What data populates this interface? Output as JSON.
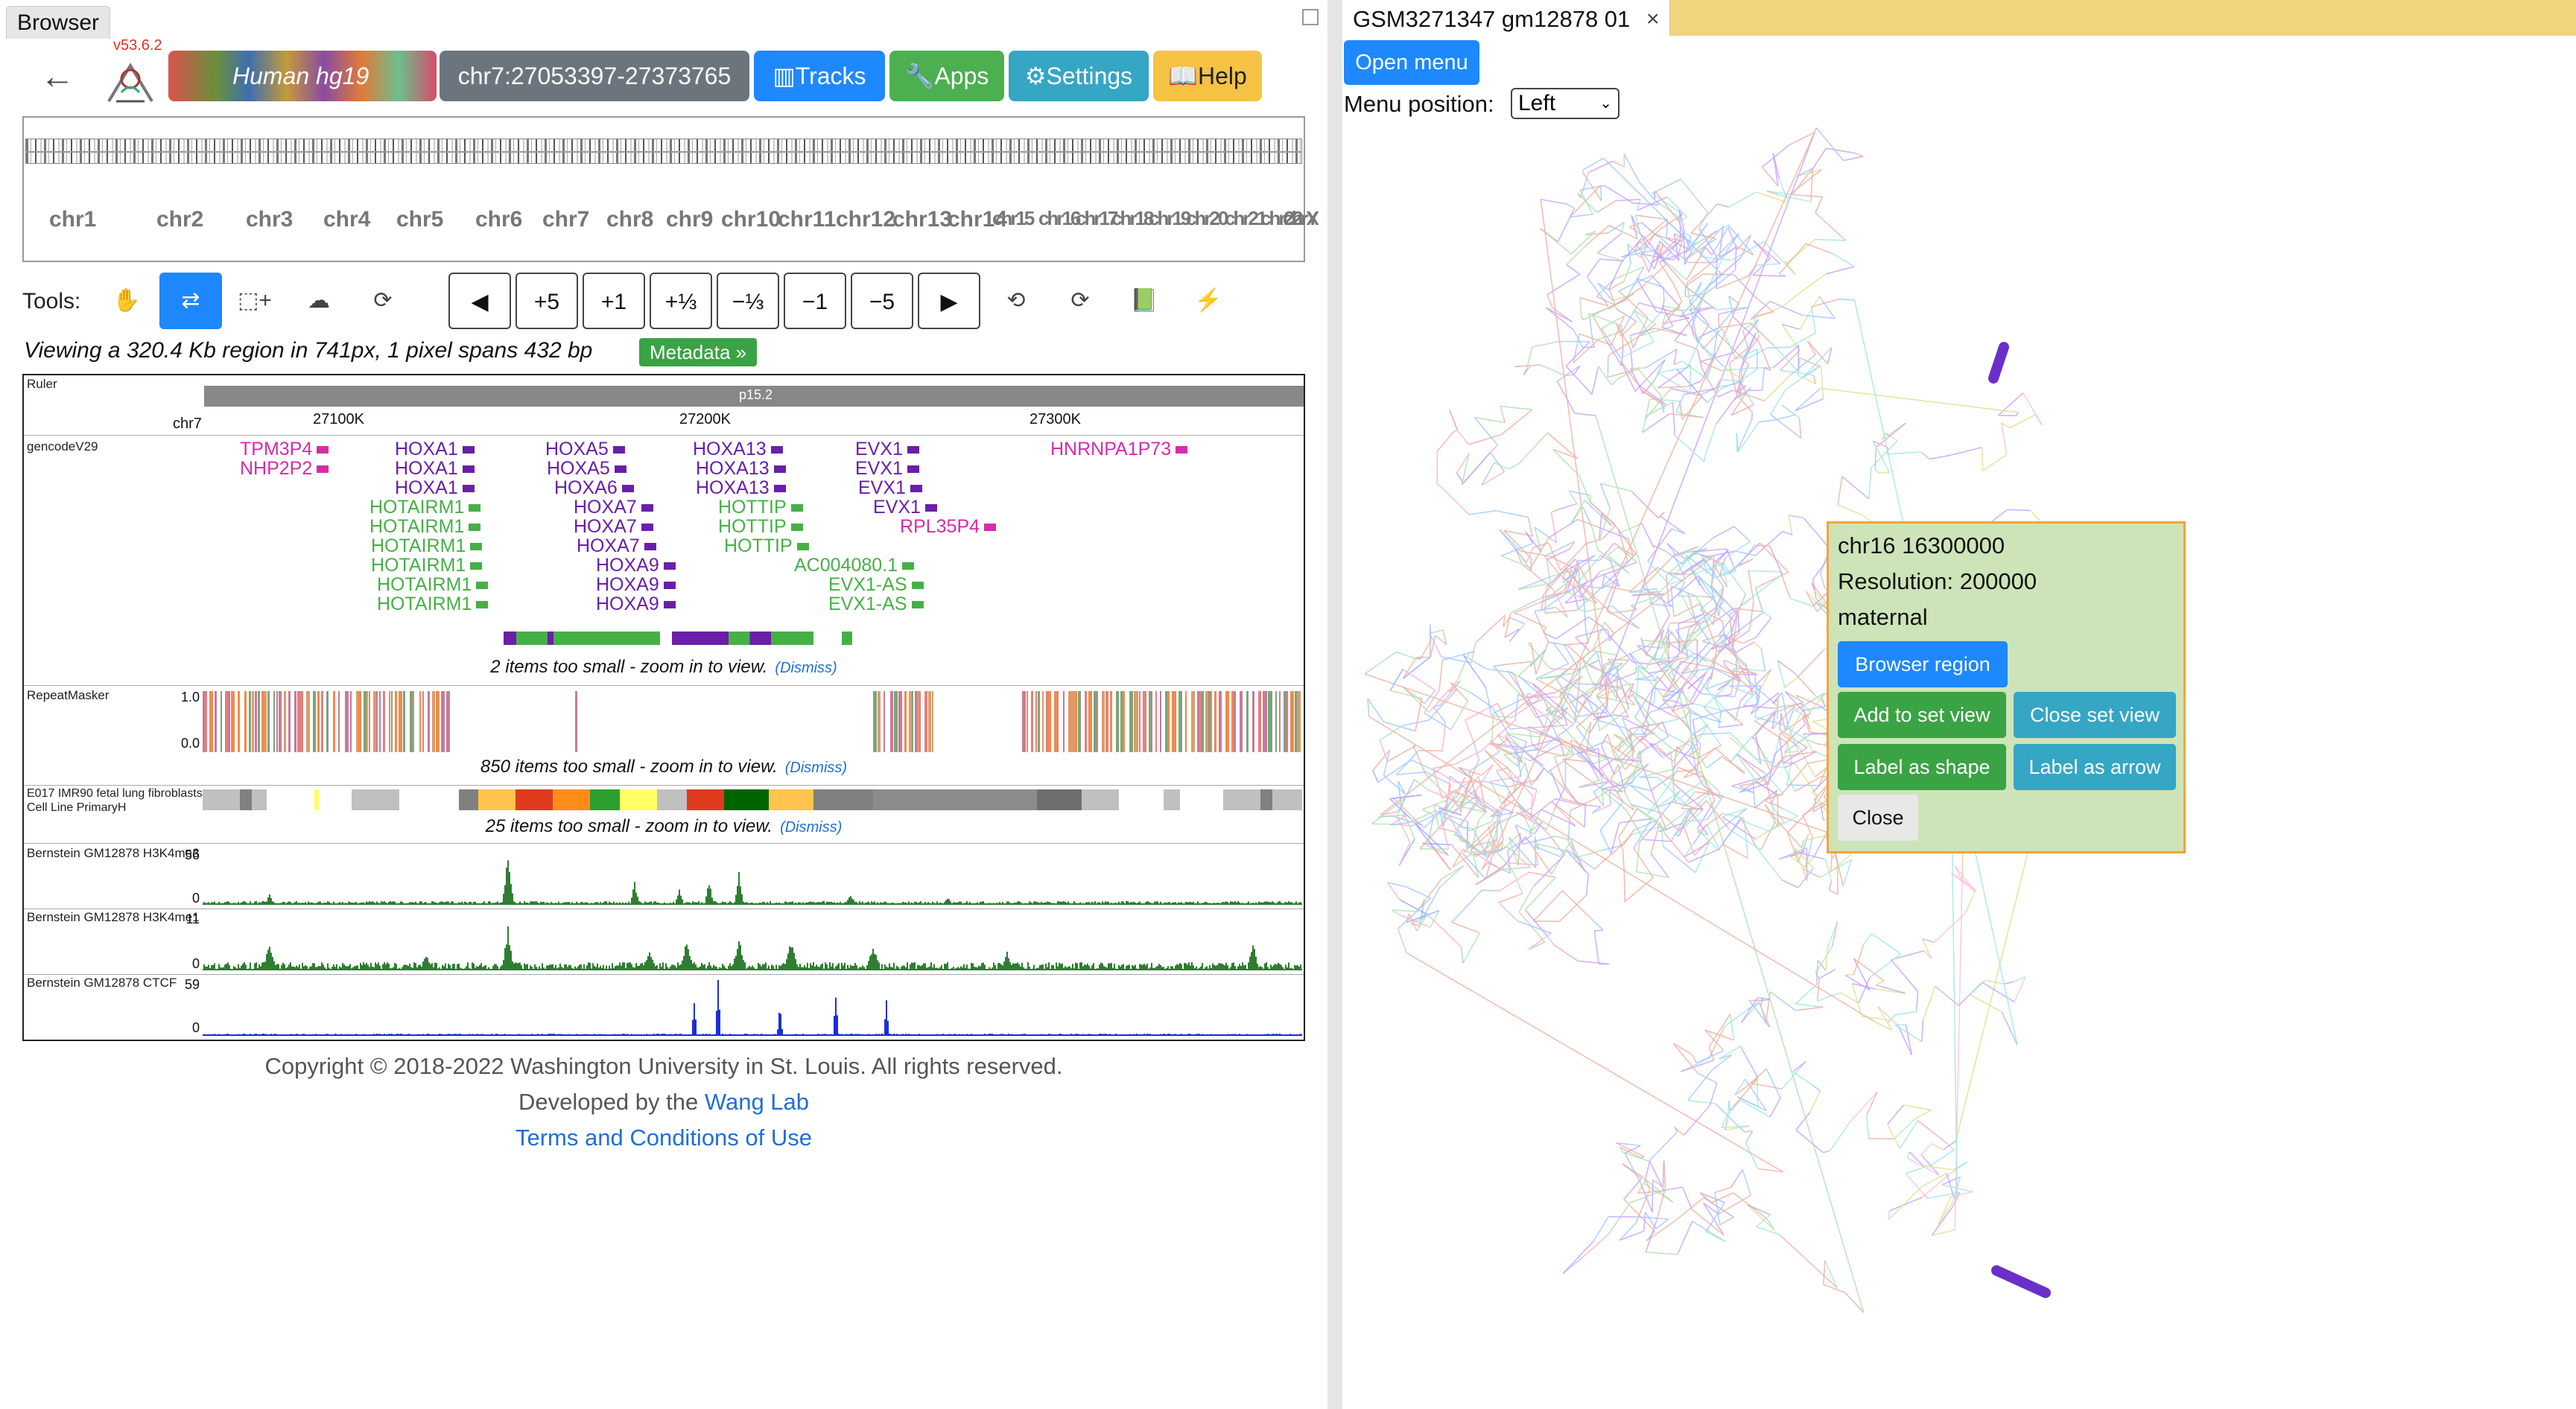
{
  "left_panel": {
    "tab_label": "Browser",
    "version": "v53.6.2",
    "genome": {
      "name": "Human",
      "build": "hg19"
    },
    "nav": {
      "region": "chr7:27053397-27373765",
      "tracks": "Tracks",
      "apps": "Apps",
      "settings": "Settings",
      "help": "Help"
    },
    "chromosomes": [
      "chr1",
      "chr2",
      "chr3",
      "chr4",
      "chr5",
      "chr6",
      "chr7",
      "chr8",
      "chr9",
      "chr10",
      "chr11",
      "chr12",
      "chr13",
      "chr14",
      "chr15",
      "chr16",
      "chr17",
      "chr18",
      "chr19",
      "chr20",
      "chr21",
      "chr22",
      "chrX",
      "chrY"
    ],
    "tools": {
      "label": "Tools:",
      "buttons": [
        "◀",
        "+5",
        "+1",
        "+⅓",
        "−⅓",
        "−1",
        "−5",
        "▶"
      ]
    },
    "viewing_text": "Viewing a 320.4 Kb region in 741px, 1 pixel spans 432 bp",
    "metadata_button": "Metadata »",
    "ruler": {
      "label": "Ruler",
      "band": "p15.2",
      "chrom": "chr7",
      "ticks": [
        "27100K",
        "27200K",
        "27300K"
      ]
    },
    "gene_track": {
      "name": "gencodeV29",
      "note": "2 items too small - zoom in to view.",
      "genes": [
        {
          "t": "TPM3P4",
          "c": "m"
        },
        {
          "t": "NHP2P2",
          "c": "m"
        },
        {
          "t": "HOXA1",
          "c": "p"
        },
        {
          "t": "HOXA1",
          "c": "p"
        },
        {
          "t": "HOXA1",
          "c": "p"
        },
        {
          "t": "HOTAIRM1",
          "c": "g"
        },
        {
          "t": "HOTAIRM1",
          "c": "g"
        },
        {
          "t": "HOTAIRM1",
          "c": "g"
        },
        {
          "t": "HOTAIRM1",
          "c": "g"
        },
        {
          "t": "HOTAIRM1",
          "c": "g"
        },
        {
          "t": "HOTAIRM1",
          "c": "g"
        },
        {
          "t": "HOXA5",
          "c": "p"
        },
        {
          "t": "HOXA5",
          "c": "p"
        },
        {
          "t": "HOXA6",
          "c": "p"
        },
        {
          "t": "HOXA7",
          "c": "p"
        },
        {
          "t": "HOXA7",
          "c": "p"
        },
        {
          "t": "HOXA7",
          "c": "p"
        },
        {
          "t": "HOXA9",
          "c": "p"
        },
        {
          "t": "HOXA9",
          "c": "p"
        },
        {
          "t": "HOXA9",
          "c": "p"
        },
        {
          "t": "HOXA13",
          "c": "p"
        },
        {
          "t": "HOXA13",
          "c": "p"
        },
        {
          "t": "HOXA13",
          "c": "p"
        },
        {
          "t": "HOTTIP",
          "c": "g"
        },
        {
          "t": "HOTTIP",
          "c": "g"
        },
        {
          "t": "HOTTIP",
          "c": "g"
        },
        {
          "t": "AC004080.1",
          "c": "g"
        },
        {
          "t": "EVX1-AS",
          "c": "g"
        },
        {
          "t": "EVX1-AS",
          "c": "g"
        },
        {
          "t": "EVX1",
          "c": "p"
        },
        {
          "t": "EVX1",
          "c": "p"
        },
        {
          "t": "EVX1",
          "c": "p"
        },
        {
          "t": "EVX1",
          "c": "p"
        },
        {
          "t": "RPL35P4",
          "c": "m"
        },
        {
          "t": "HNRNPA1P73",
          "c": "m"
        }
      ]
    },
    "repeat_track": {
      "name": "RepeatMasker",
      "max": "1.0",
      "min": "0.0",
      "note": "850 items too small - zoom in to view."
    },
    "chromhmm_track": {
      "name": "E017 IMR90 fetal lung fibroblasts Cell Line PrimaryH",
      "note": "25 items too small - zoom in to view."
    },
    "dismiss_label": "(Dismiss)",
    "signal_tracks": [
      {
        "name": "Bernstein GM12878 H3K4me3",
        "max": "56",
        "min": "0",
        "color": "#2e7d32"
      },
      {
        "name": "Bernstein GM12878 H3K4me1",
        "max": "11",
        "min": "0",
        "color": "#2e7d32"
      },
      {
        "name": "Bernstein GM12878 CTCF",
        "max": "59",
        "min": "0",
        "color": "#1a2fd6"
      }
    ],
    "footer": {
      "copyright": "Copyright © 2018-2022 Washington University in St. Louis. All rights reserved.",
      "developed_prefix": "Developed by the",
      "lab_link": "Wang Lab",
      "terms": "Terms and Conditions of Use"
    }
  },
  "right_panel": {
    "tab_label": "GSM3271347 gm12878 01",
    "close_glyph": "×",
    "open_menu": "Open menu",
    "menu_position_label": "Menu position:",
    "menu_position_value": "Left",
    "popup": {
      "region": "chr16 16300000",
      "resolution": "Resolution: 200000",
      "haplotype": "maternal",
      "browser_region": "Browser region",
      "add_to_set": "Add to set view",
      "close_set": "Close set view",
      "label_shape": "Label as shape",
      "label_arrow": "Label as arrow",
      "close": "Close"
    }
  },
  "colors": {
    "primary": "#1e88ff",
    "success": "#3aa344",
    "info": "#35a6c4",
    "warning": "#f6c244",
    "secondary": "#6c757d",
    "popup_bg": "#cde4b8",
    "popup_border": "#f0a63a"
  }
}
